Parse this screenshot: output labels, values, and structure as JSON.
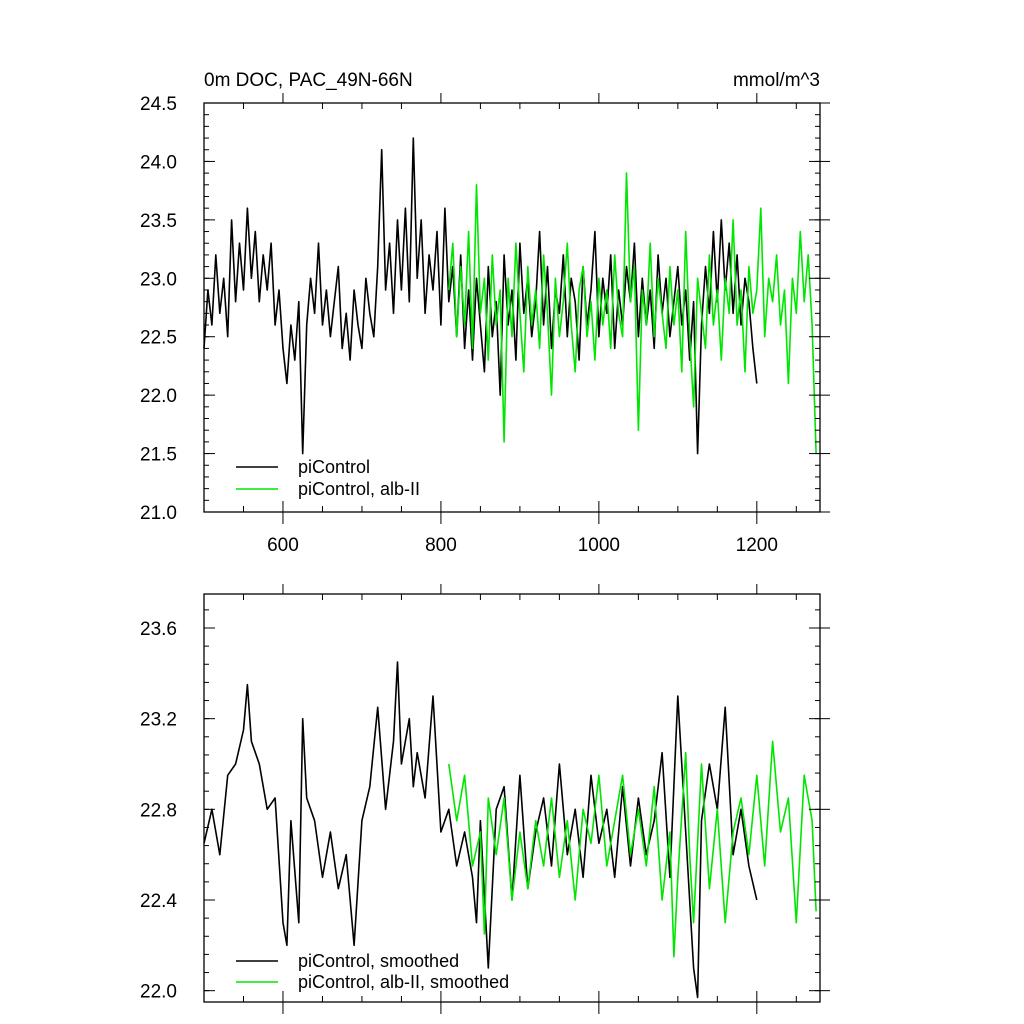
{
  "chart_data": [
    {
      "type": "line",
      "title": "0m DOC, PAC_49N-66N",
      "units": "mmol/m^3",
      "xlim": [
        500,
        1280
      ],
      "ylim": [
        21.0,
        24.5
      ],
      "x_ticks": [
        600,
        800,
        1000,
        1200
      ],
      "x_tick_labels": [
        "600",
        "800",
        "1000",
        "1200"
      ],
      "y_ticks": [
        21.0,
        21.5,
        22.0,
        22.5,
        23.0,
        23.5,
        24.0,
        24.5
      ],
      "y_tick_labels": [
        "21.0",
        "21.5",
        "22.0",
        "22.5",
        "23.0",
        "23.5",
        "24.0",
        "24.5"
      ],
      "grid": false,
      "legend_position": "bottom-left",
      "series": [
        {
          "name": "piControl",
          "color": "#000000",
          "x": [
            500,
            505,
            510,
            515,
            520,
            525,
            530,
            535,
            540,
            545,
            550,
            555,
            560,
            565,
            570,
            575,
            580,
            585,
            590,
            595,
            600,
            605,
            610,
            615,
            620,
            625,
            630,
            635,
            640,
            645,
            650,
            655,
            660,
            665,
            670,
            675,
            680,
            685,
            690,
            695,
            700,
            705,
            710,
            715,
            720,
            725,
            730,
            735,
            740,
            745,
            750,
            755,
            760,
            765,
            770,
            775,
            780,
            785,
            790,
            795,
            800,
            805,
            810,
            815,
            820,
            825,
            830,
            835,
            840,
            845,
            850,
            855,
            860,
            865,
            870,
            875,
            880,
            885,
            890,
            895,
            900,
            905,
            910,
            915,
            920,
            925,
            930,
            935,
            940,
            945,
            950,
            955,
            960,
            965,
            970,
            975,
            980,
            985,
            990,
            995,
            1000,
            1005,
            1010,
            1015,
            1020,
            1025,
            1030,
            1035,
            1040,
            1045,
            1050,
            1055,
            1060,
            1065,
            1070,
            1075,
            1080,
            1085,
            1090,
            1095,
            1100,
            1105,
            1110,
            1115,
            1120,
            1125,
            1130,
            1135,
            1140,
            1145,
            1150,
            1155,
            1160,
            1165,
            1170,
            1175,
            1180,
            1185,
            1190,
            1195,
            1200
          ],
          "values": [
            22.4,
            22.9,
            22.6,
            23.2,
            22.7,
            23.0,
            22.5,
            23.5,
            22.8,
            23.3,
            22.9,
            23.6,
            23.0,
            23.4,
            22.8,
            23.2,
            22.9,
            23.3,
            22.6,
            22.9,
            22.4,
            22.1,
            22.6,
            22.3,
            22.8,
            21.5,
            22.6,
            23.0,
            22.7,
            23.3,
            22.6,
            22.9,
            22.5,
            22.8,
            23.1,
            22.4,
            22.7,
            22.3,
            22.9,
            22.6,
            22.4,
            23.0,
            22.7,
            22.5,
            23.1,
            24.1,
            22.9,
            23.3,
            22.7,
            23.5,
            22.9,
            23.6,
            22.8,
            24.2,
            23.0,
            23.5,
            22.7,
            23.2,
            22.9,
            23.4,
            22.6,
            23.6,
            22.8,
            23.1,
            22.5,
            23.2,
            22.4,
            22.9,
            22.3,
            23.0,
            22.6,
            22.2,
            23.1,
            22.5,
            22.8,
            22.0,
            23.2,
            22.6,
            22.9,
            22.3,
            23.3,
            22.7,
            23.0,
            22.5,
            22.8,
            23.4,
            22.6,
            23.1,
            22.4,
            22.9,
            22.7,
            23.2,
            22.5,
            23.0,
            22.8,
            22.3,
            23.1,
            22.6,
            22.9,
            23.4,
            22.5,
            23.0,
            22.7,
            23.2,
            22.4,
            22.9,
            22.6,
            23.1,
            22.8,
            23.3,
            22.5,
            23.0,
            22.6,
            22.9,
            22.4,
            23.2,
            22.7,
            23.0,
            22.5,
            22.8,
            23.1,
            22.6,
            22.9,
            22.3,
            22.8,
            21.5,
            22.6,
            23.1,
            22.7,
            23.4,
            22.8,
            23.5,
            22.9,
            23.3,
            22.7,
            23.2,
            22.6,
            23.0,
            22.8,
            22.4,
            22.1
          ]
        },
        {
          "name": "piControl, alb-II",
          "color": "#00e600",
          "x": [
            810,
            815,
            820,
            825,
            830,
            835,
            840,
            845,
            850,
            855,
            860,
            865,
            870,
            875,
            880,
            885,
            890,
            895,
            900,
            905,
            910,
            915,
            920,
            925,
            930,
            935,
            940,
            945,
            950,
            955,
            960,
            965,
            970,
            975,
            980,
            985,
            990,
            995,
            1000,
            1005,
            1010,
            1015,
            1020,
            1025,
            1030,
            1035,
            1040,
            1045,
            1050,
            1055,
            1060,
            1065,
            1070,
            1075,
            1080,
            1085,
            1090,
            1095,
            1100,
            1105,
            1110,
            1115,
            1120,
            1125,
            1130,
            1135,
            1140,
            1145,
            1150,
            1155,
            1160,
            1165,
            1170,
            1175,
            1180,
            1185,
            1190,
            1195,
            1200,
            1205,
            1210,
            1215,
            1220,
            1225,
            1230,
            1235,
            1240,
            1245,
            1250,
            1255,
            1260,
            1265,
            1270,
            1275
          ],
          "values": [
            22.9,
            23.3,
            22.5,
            23.1,
            22.6,
            23.4,
            22.4,
            23.8,
            22.7,
            23.0,
            22.3,
            23.2,
            22.6,
            22.9,
            21.6,
            23.0,
            22.5,
            23.3,
            22.7,
            22.2,
            23.1,
            22.6,
            22.9,
            22.4,
            23.2,
            22.7,
            22.0,
            23.0,
            22.5,
            22.8,
            23.3,
            22.6,
            22.2,
            22.9,
            23.1,
            22.5,
            22.8,
            22.3,
            23.0,
            22.6,
            22.9,
            22.4,
            23.2,
            22.7,
            22.5,
            23.9,
            22.8,
            23.1,
            21.7,
            22.9,
            22.6,
            23.3,
            22.5,
            23.0,
            22.7,
            22.4,
            23.1,
            22.6,
            22.9,
            22.2,
            23.4,
            22.5,
            21.9,
            23.0,
            22.7,
            22.4,
            23.2,
            22.6,
            22.9,
            22.3,
            23.0,
            22.7,
            23.5,
            22.6,
            22.9,
            22.2,
            23.1,
            22.7,
            22.9,
            23.6,
            22.5,
            23.0,
            22.8,
            23.2,
            22.6,
            22.9,
            22.1,
            23.0,
            22.7,
            23.4,
            22.8,
            23.2,
            22.6,
            21.5
          ]
        }
      ]
    },
    {
      "type": "line",
      "title": "",
      "xlim": [
        500,
        1280
      ],
      "ylim": [
        21.95,
        23.75
      ],
      "x_ticks": [
        600,
        800,
        1000,
        1200
      ],
      "x_tick_labels": [],
      "y_ticks": [
        22.0,
        22.4,
        22.8,
        23.2,
        23.6
      ],
      "y_tick_labels": [
        "22.0",
        "22.4",
        "22.8",
        "23.2",
        "23.6"
      ],
      "grid": false,
      "legend_position": "bottom-left",
      "series": [
        {
          "name": "piControl, smoothed",
          "color": "#000000",
          "x": [
            500,
            510,
            520,
            530,
            540,
            550,
            555,
            560,
            570,
            580,
            590,
            600,
            605,
            610,
            620,
            625,
            630,
            640,
            650,
            660,
            670,
            680,
            690,
            700,
            710,
            720,
            730,
            740,
            745,
            750,
            760,
            765,
            770,
            780,
            790,
            800,
            810,
            820,
            830,
            840,
            845,
            850,
            860,
            870,
            880,
            890,
            900,
            910,
            920,
            930,
            940,
            950,
            960,
            970,
            980,
            990,
            1000,
            1010,
            1020,
            1030,
            1040,
            1050,
            1060,
            1070,
            1080,
            1090,
            1100,
            1110,
            1120,
            1125,
            1130,
            1140,
            1150,
            1160,
            1170,
            1180,
            1190,
            1200
          ],
          "values": [
            22.65,
            22.8,
            22.6,
            22.95,
            23.0,
            23.15,
            23.35,
            23.1,
            23.0,
            22.8,
            22.85,
            22.3,
            22.2,
            22.75,
            22.3,
            23.2,
            22.85,
            22.75,
            22.5,
            22.7,
            22.45,
            22.6,
            22.2,
            22.75,
            22.9,
            23.25,
            22.8,
            23.1,
            23.45,
            23.0,
            23.2,
            22.9,
            23.05,
            22.85,
            23.3,
            22.7,
            22.8,
            22.55,
            22.7,
            22.5,
            22.3,
            22.75,
            22.1,
            22.8,
            22.9,
            22.4,
            22.95,
            22.45,
            22.7,
            22.85,
            22.55,
            23.0,
            22.6,
            22.8,
            22.5,
            22.95,
            22.65,
            22.8,
            22.5,
            22.9,
            22.55,
            22.85,
            22.6,
            22.75,
            23.05,
            22.5,
            23.3,
            22.7,
            22.1,
            21.97,
            22.75,
            23.0,
            22.8,
            23.25,
            22.6,
            22.8,
            22.55,
            22.4
          ]
        },
        {
          "name": "piControl, alb-II, smoothed",
          "color": "#00e600",
          "x": [
            810,
            820,
            830,
            840,
            850,
            855,
            860,
            870,
            880,
            890,
            900,
            910,
            920,
            930,
            940,
            950,
            960,
            970,
            980,
            990,
            1000,
            1010,
            1020,
            1030,
            1040,
            1050,
            1060,
            1070,
            1080,
            1090,
            1095,
            1100,
            1110,
            1115,
            1120,
            1130,
            1140,
            1150,
            1160,
            1170,
            1180,
            1190,
            1200,
            1210,
            1220,
            1230,
            1240,
            1250,
            1260,
            1270,
            1275
          ],
          "values": [
            23.0,
            22.75,
            22.95,
            22.55,
            22.7,
            22.25,
            22.85,
            22.6,
            22.85,
            22.4,
            22.7,
            22.45,
            22.75,
            22.55,
            22.85,
            22.5,
            22.75,
            22.4,
            22.8,
            22.65,
            22.95,
            22.55,
            22.75,
            22.95,
            22.6,
            22.8,
            22.55,
            22.9,
            22.4,
            22.7,
            22.15,
            22.5,
            23.05,
            22.6,
            22.3,
            23.0,
            22.45,
            22.8,
            22.3,
            22.7,
            22.85,
            22.6,
            22.95,
            22.55,
            23.1,
            22.7,
            22.85,
            22.3,
            22.95,
            22.75,
            22.35
          ]
        }
      ]
    }
  ]
}
